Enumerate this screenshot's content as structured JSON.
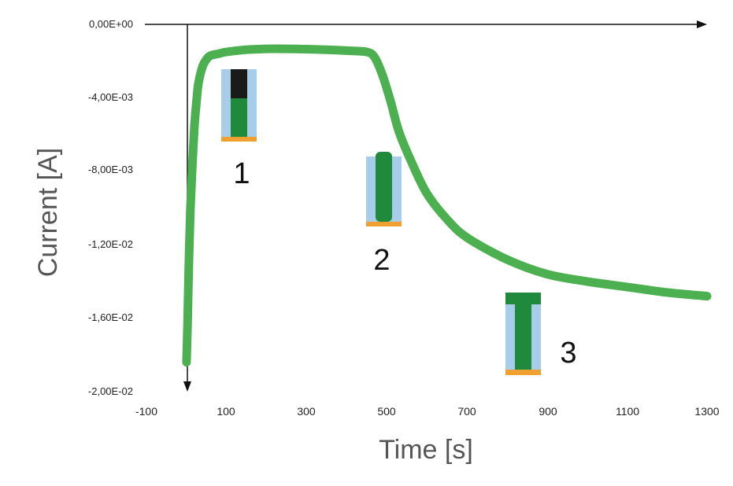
{
  "chart_data": {
    "type": "line",
    "xlabel": "Time [s]",
    "ylabel": "Current [A]",
    "xlim": [
      -100,
      1300
    ],
    "ylim": [
      -0.02,
      0
    ],
    "x_ticks": [
      "-100",
      "100",
      "300",
      "500",
      "700",
      "900",
      "1100",
      "1300"
    ],
    "x_tick_values": [
      -100,
      100,
      300,
      500,
      700,
      900,
      1100,
      1300
    ],
    "y_ticks": [
      "0,00E+00",
      "-4,00E-03",
      "-8,00E-03",
      "-1,20E-02",
      "-1,60E-02",
      "-2,00E-02"
    ],
    "y_tick_values": [
      0,
      -0.004,
      -0.008,
      -0.012,
      -0.016,
      -0.02
    ],
    "grid": false,
    "legend": "none",
    "series": [
      {
        "color": "#4caf50",
        "x": [
          0,
          3,
          6,
          10,
          15,
          20,
          25,
          30,
          40,
          50,
          60,
          80,
          100,
          150,
          200,
          250,
          300,
          350,
          400,
          450,
          470,
          490,
          510,
          530,
          560,
          600,
          650,
          700,
          800,
          900,
          1000,
          1100,
          1200,
          1300
        ],
        "y": [
          -0.0184,
          -0.016,
          -0.013,
          -0.01,
          -0.0075,
          -0.0055,
          -0.0042,
          -0.0032,
          -0.0023,
          -0.0019,
          -0.0017,
          -0.0016,
          -0.0015,
          -0.00138,
          -0.00133,
          -0.00133,
          -0.00135,
          -0.00138,
          -0.00143,
          -0.0015,
          -0.0018,
          -0.0028,
          -0.0042,
          -0.0058,
          -0.0074,
          -0.0092,
          -0.0106,
          -0.0116,
          -0.0128,
          -0.0136,
          -0.014,
          -0.0143,
          -0.0146,
          -0.0148
        ]
      }
    ],
    "annotations": [
      "1",
      "2",
      "3"
    ]
  },
  "insets": {
    "blue": "#a8cde8",
    "green": "#1f8a3c",
    "dark": "#1a1a1a",
    "gold": "#f0a030"
  }
}
